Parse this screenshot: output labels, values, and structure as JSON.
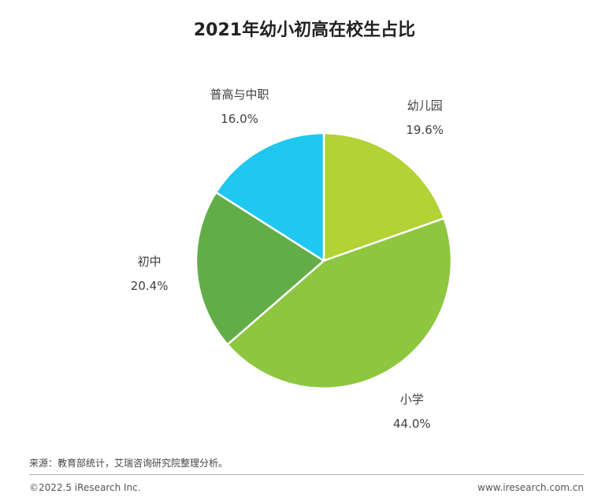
{
  "chart_data": {
    "type": "pie",
    "title": "2021年幼小初高在校生占比",
    "slices": [
      {
        "label": "幼儿园",
        "value": 19.6,
        "value_label": "19.6%",
        "color": "#b2d235"
      },
      {
        "label": "小学",
        "value": 44.0,
        "value_label": "44.0%",
        "color": "#8dc63f"
      },
      {
        "label": "初中",
        "value": 20.4,
        "value_label": "20.4%",
        "color": "#62ad47"
      },
      {
        "label": "普高与中职",
        "value": 16.0,
        "value_label": "16.0%",
        "color": "#1ec8f0"
      }
    ],
    "start_angle_deg": 0,
    "direction": "clockwise"
  },
  "footer": {
    "source": "来源：教育部统计，艾瑞咨询研究院整理分析。",
    "copyright": "©2022.5 iResearch Inc.",
    "website": "www.iresearch.com.cn"
  }
}
